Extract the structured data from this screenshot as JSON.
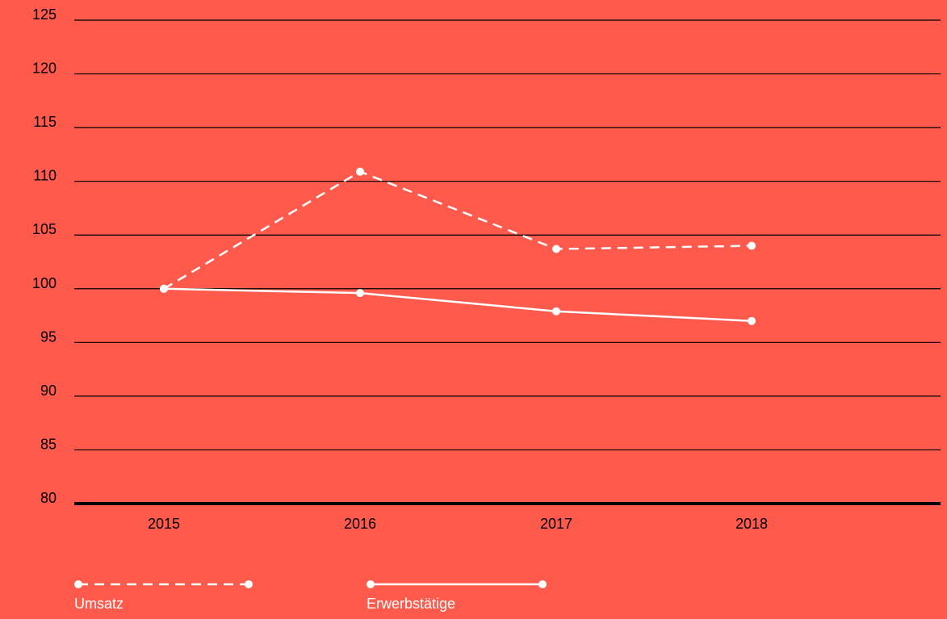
{
  "colors": {
    "background": "#FF5A4B",
    "gridline": "#000000",
    "series": "#FFFFFF",
    "tick_text": "#000000",
    "legend_text": "#FFFFFF"
  },
  "chart_data": {
    "type": "line",
    "title": "",
    "xlabel": "",
    "ylabel": "",
    "x": [
      "2015",
      "2016",
      "2017",
      "2018"
    ],
    "ylim": [
      80,
      125
    ],
    "yticks": [
      80,
      85,
      90,
      95,
      100,
      105,
      110,
      115,
      120,
      125
    ],
    "grid": true,
    "legend_position": "bottom-left",
    "series": [
      {
        "name": "Umsatz",
        "style": "dashed",
        "values": [
          100,
          110.9,
          103.7,
          104.0
        ]
      },
      {
        "name": "Erwerbstätige",
        "style": "solid",
        "values": [
          100,
          99.6,
          97.9,
          97.0
        ]
      }
    ]
  }
}
